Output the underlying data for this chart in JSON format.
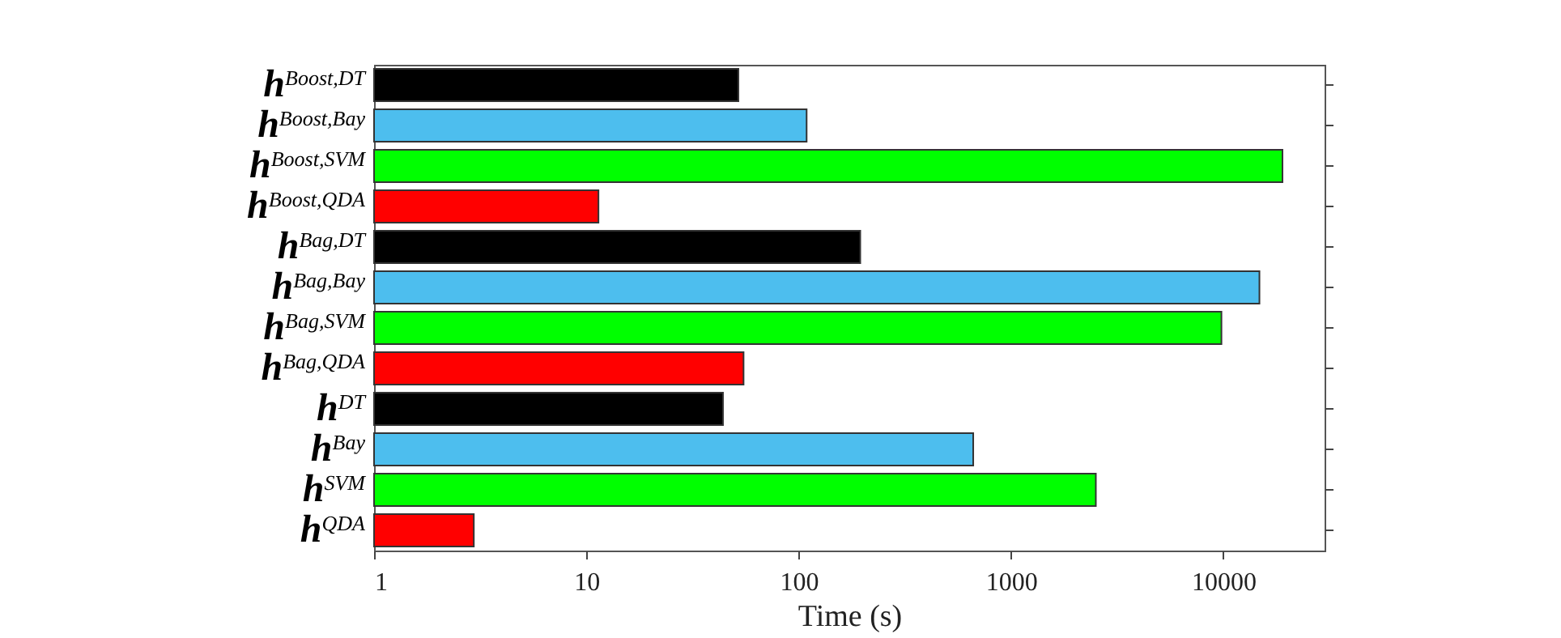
{
  "chart_data": {
    "type": "bar",
    "orientation": "horizontal",
    "log": "x",
    "xlabel": "Time (s)",
    "categories": [
      "h$^{Boost,DT}$",
      "h$^{Boost,Bay}$",
      "h$^{Boost,SVM}$",
      "h$^{Boost,QDA}$",
      "h$^{Bag,DT}$",
      "h$^{Bag,Bay}$",
      "h$^{Bag,SVM}$",
      "h$^{Bag,QDA}$",
      "h$^{DT}$",
      "h$^{Bay}$",
      "h$^{SVM}$",
      "h$^{QDA}$"
    ],
    "values": [
      52,
      109,
      19000,
      11.4,
      195,
      14800,
      9800,
      55,
      44,
      664,
      2510,
      2.95
    ],
    "colors": [
      "#000000",
      "#4dbeee",
      "#00ff00",
      "#ff0000",
      "#000000",
      "#4dbeee",
      "#00ff00",
      "#ff0000",
      "#000000",
      "#4dbeee",
      "#00ff00",
      "#ff0000"
    ],
    "xlim": [
      1,
      30000
    ],
    "xticks": [
      1,
      10,
      100,
      1000,
      10000
    ],
    "grid": false,
    "legend": false
  }
}
